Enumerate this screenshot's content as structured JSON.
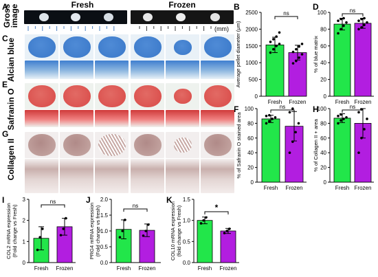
{
  "panel_letters": [
    "A",
    "B",
    "C",
    "D",
    "E",
    "F",
    "G",
    "H",
    "I",
    "J",
    "K"
  ],
  "gross": {
    "row_label_line1": "Gross",
    "row_label_line2": "image",
    "fresh_title": "Fresh",
    "frozen_title": "Frozen",
    "scale_unit": "(mm)"
  },
  "row_labels": {
    "alcian": "Alcian blue",
    "safranin": "Safranin O",
    "collagen": "Collagen II"
  },
  "colors": {
    "fresh": "#22e64a",
    "frozen": "#b21ee0",
    "alcian": "#3a78c9",
    "safranin": "#d94040",
    "collagen": "#b08a88"
  },
  "chart_data": [
    {
      "panel": "B",
      "type": "bar",
      "categories": [
        "Fresh",
        "Frozen"
      ],
      "values": [
        1530,
        1300
      ],
      "errors": [
        230,
        220
      ],
      "points": [
        [
          1300,
          1400,
          1500,
          1560,
          1620,
          1700,
          1780,
          1900
        ],
        [
          980,
          1050,
          1150,
          1250,
          1320,
          1400,
          1480,
          1560
        ]
      ],
      "ylabel": "Average pellet diameter (μm)",
      "yticks": [
        0,
        500,
        1000,
        1500,
        2000,
        2500
      ],
      "ylim": [
        0,
        2500
      ],
      "sig": "ns"
    },
    {
      "panel": "D",
      "type": "bar",
      "categories": [
        "Fresh",
        "Frozen"
      ],
      "values": [
        86,
        87
      ],
      "errors": [
        7,
        6
      ],
      "points": [
        [
          75,
          80,
          84,
          88,
          90,
          92,
          93
        ],
        [
          80,
          82,
          85,
          88,
          90,
          92,
          93
        ]
      ],
      "ylabel": "% of blue matrix",
      "yticks": [
        0,
        20,
        40,
        60,
        80,
        100
      ],
      "ylim": [
        0,
        100
      ],
      "sig": "ns"
    },
    {
      "panel": "F",
      "type": "bar",
      "categories": [
        "Fresh",
        "Frozen"
      ],
      "values": [
        86,
        76
      ],
      "errors": [
        5,
        20
      ],
      "points": [
        [
          80,
          83,
          86,
          88,
          90,
          91
        ],
        [
          40,
          55,
          68,
          80,
          95,
          100
        ]
      ],
      "ylabel": "% of Safranin O stained area",
      "yticks": [
        0,
        20,
        40,
        60,
        80,
        100
      ],
      "ylim": [
        0,
        100
      ],
      "sig": "ns"
    },
    {
      "panel": "H",
      "type": "bar",
      "categories": [
        "Fresh",
        "Frozen"
      ],
      "values": [
        87,
        80
      ],
      "errors": [
        6,
        20
      ],
      "points": [
        [
          80,
          84,
          86,
          88,
          90,
          92
        ],
        [
          40,
          60,
          72,
          86,
          95,
          99
        ]
      ],
      "ylabel": "% of Collagen II + area",
      "yticks": [
        0,
        20,
        40,
        60,
        80,
        100
      ],
      "ylim": [
        0,
        100
      ],
      "sig": "ns"
    },
    {
      "panel": "I",
      "type": "bar",
      "categories": [
        "Fresh",
        "Frozen"
      ],
      "values": [
        1.15,
        1.7
      ],
      "errors": [
        0.55,
        0.4
      ],
      "points": [
        [
          0.6,
          1.2,
          1.6
        ],
        [
          1.3,
          1.6,
          2.1
        ]
      ],
      "ylabel": "COL2 mRNA expression (Fold change vs Fresh)",
      "yticks": [
        0,
        1,
        2,
        3
      ],
      "ylim": [
        0,
        3
      ],
      "sig": "ns"
    },
    {
      "panel": "J",
      "type": "bar",
      "categories": [
        "Fresh",
        "Frozen"
      ],
      "values": [
        1.05,
        1.02
      ],
      "errors": [
        0.3,
        0.2
      ],
      "points": [
        [
          0.8,
          1.0,
          1.35
        ],
        [
          0.85,
          1.0,
          1.2
        ]
      ],
      "ylabel": "PRG4 mRNA expression (Fold change vs fresh)",
      "yticks": [
        0.0,
        0.5,
        1.0,
        1.5,
        2.0
      ],
      "ylim": [
        0,
        2
      ],
      "sig": "ns"
    },
    {
      "panel": "K",
      "type": "bar",
      "categories": [
        "Fresh",
        "Frozen"
      ],
      "values": [
        1.0,
        0.75
      ],
      "errors": [
        0.08,
        0.06
      ],
      "points": [
        [
          0.93,
          1.0,
          1.07
        ],
        [
          0.7,
          0.75,
          0.8
        ]
      ],
      "ylabel": "COL10 mRNA expression (fold change vs Fresh)",
      "yticks": [
        0.0,
        0.5,
        1.0,
        1.5
      ],
      "ylim": [
        0,
        1.5
      ],
      "sig": "*"
    }
  ]
}
